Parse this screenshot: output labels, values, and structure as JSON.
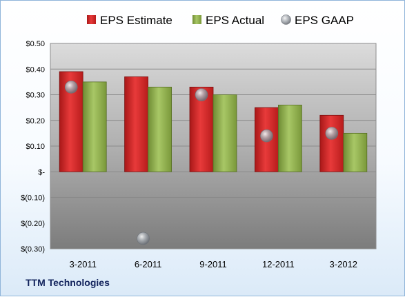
{
  "company": "TTM Technologies",
  "chart_data": {
    "type": "bar",
    "categories": [
      "3-2011",
      "6-2011",
      "9-2011",
      "12-2011",
      "3-2012"
    ],
    "series": [
      {
        "name": "EPS Estimate",
        "kind": "bar",
        "color": "#d42020",
        "values": [
          0.39,
          0.37,
          0.33,
          0.25,
          0.22
        ]
      },
      {
        "name": "EPS Actual",
        "kind": "bar",
        "color": "#8fb04a",
        "values": [
          0.35,
          0.33,
          0.3,
          0.26,
          0.15
        ]
      },
      {
        "name": "EPS GAAP",
        "kind": "marker",
        "color": "#9aa0a8",
        "values": [
          0.33,
          -0.26,
          0.3,
          0.14,
          0.15
        ]
      }
    ],
    "ylim": [
      -0.3,
      0.5
    ],
    "yticks": [
      {
        "value": 0.5,
        "label": "$0.50"
      },
      {
        "value": 0.4,
        "label": "$0.40"
      },
      {
        "value": 0.3,
        "label": "$0.30"
      },
      {
        "value": 0.2,
        "label": "$0.20"
      },
      {
        "value": 0.1,
        "label": "$0.10"
      },
      {
        "value": 0.0,
        "label": "$-"
      },
      {
        "value": -0.1,
        "label": "$(0.10)"
      },
      {
        "value": -0.2,
        "label": "$(0.20)"
      },
      {
        "value": -0.3,
        "label": "$(0.30)"
      }
    ],
    "grid": true,
    "legend_position": "top"
  }
}
